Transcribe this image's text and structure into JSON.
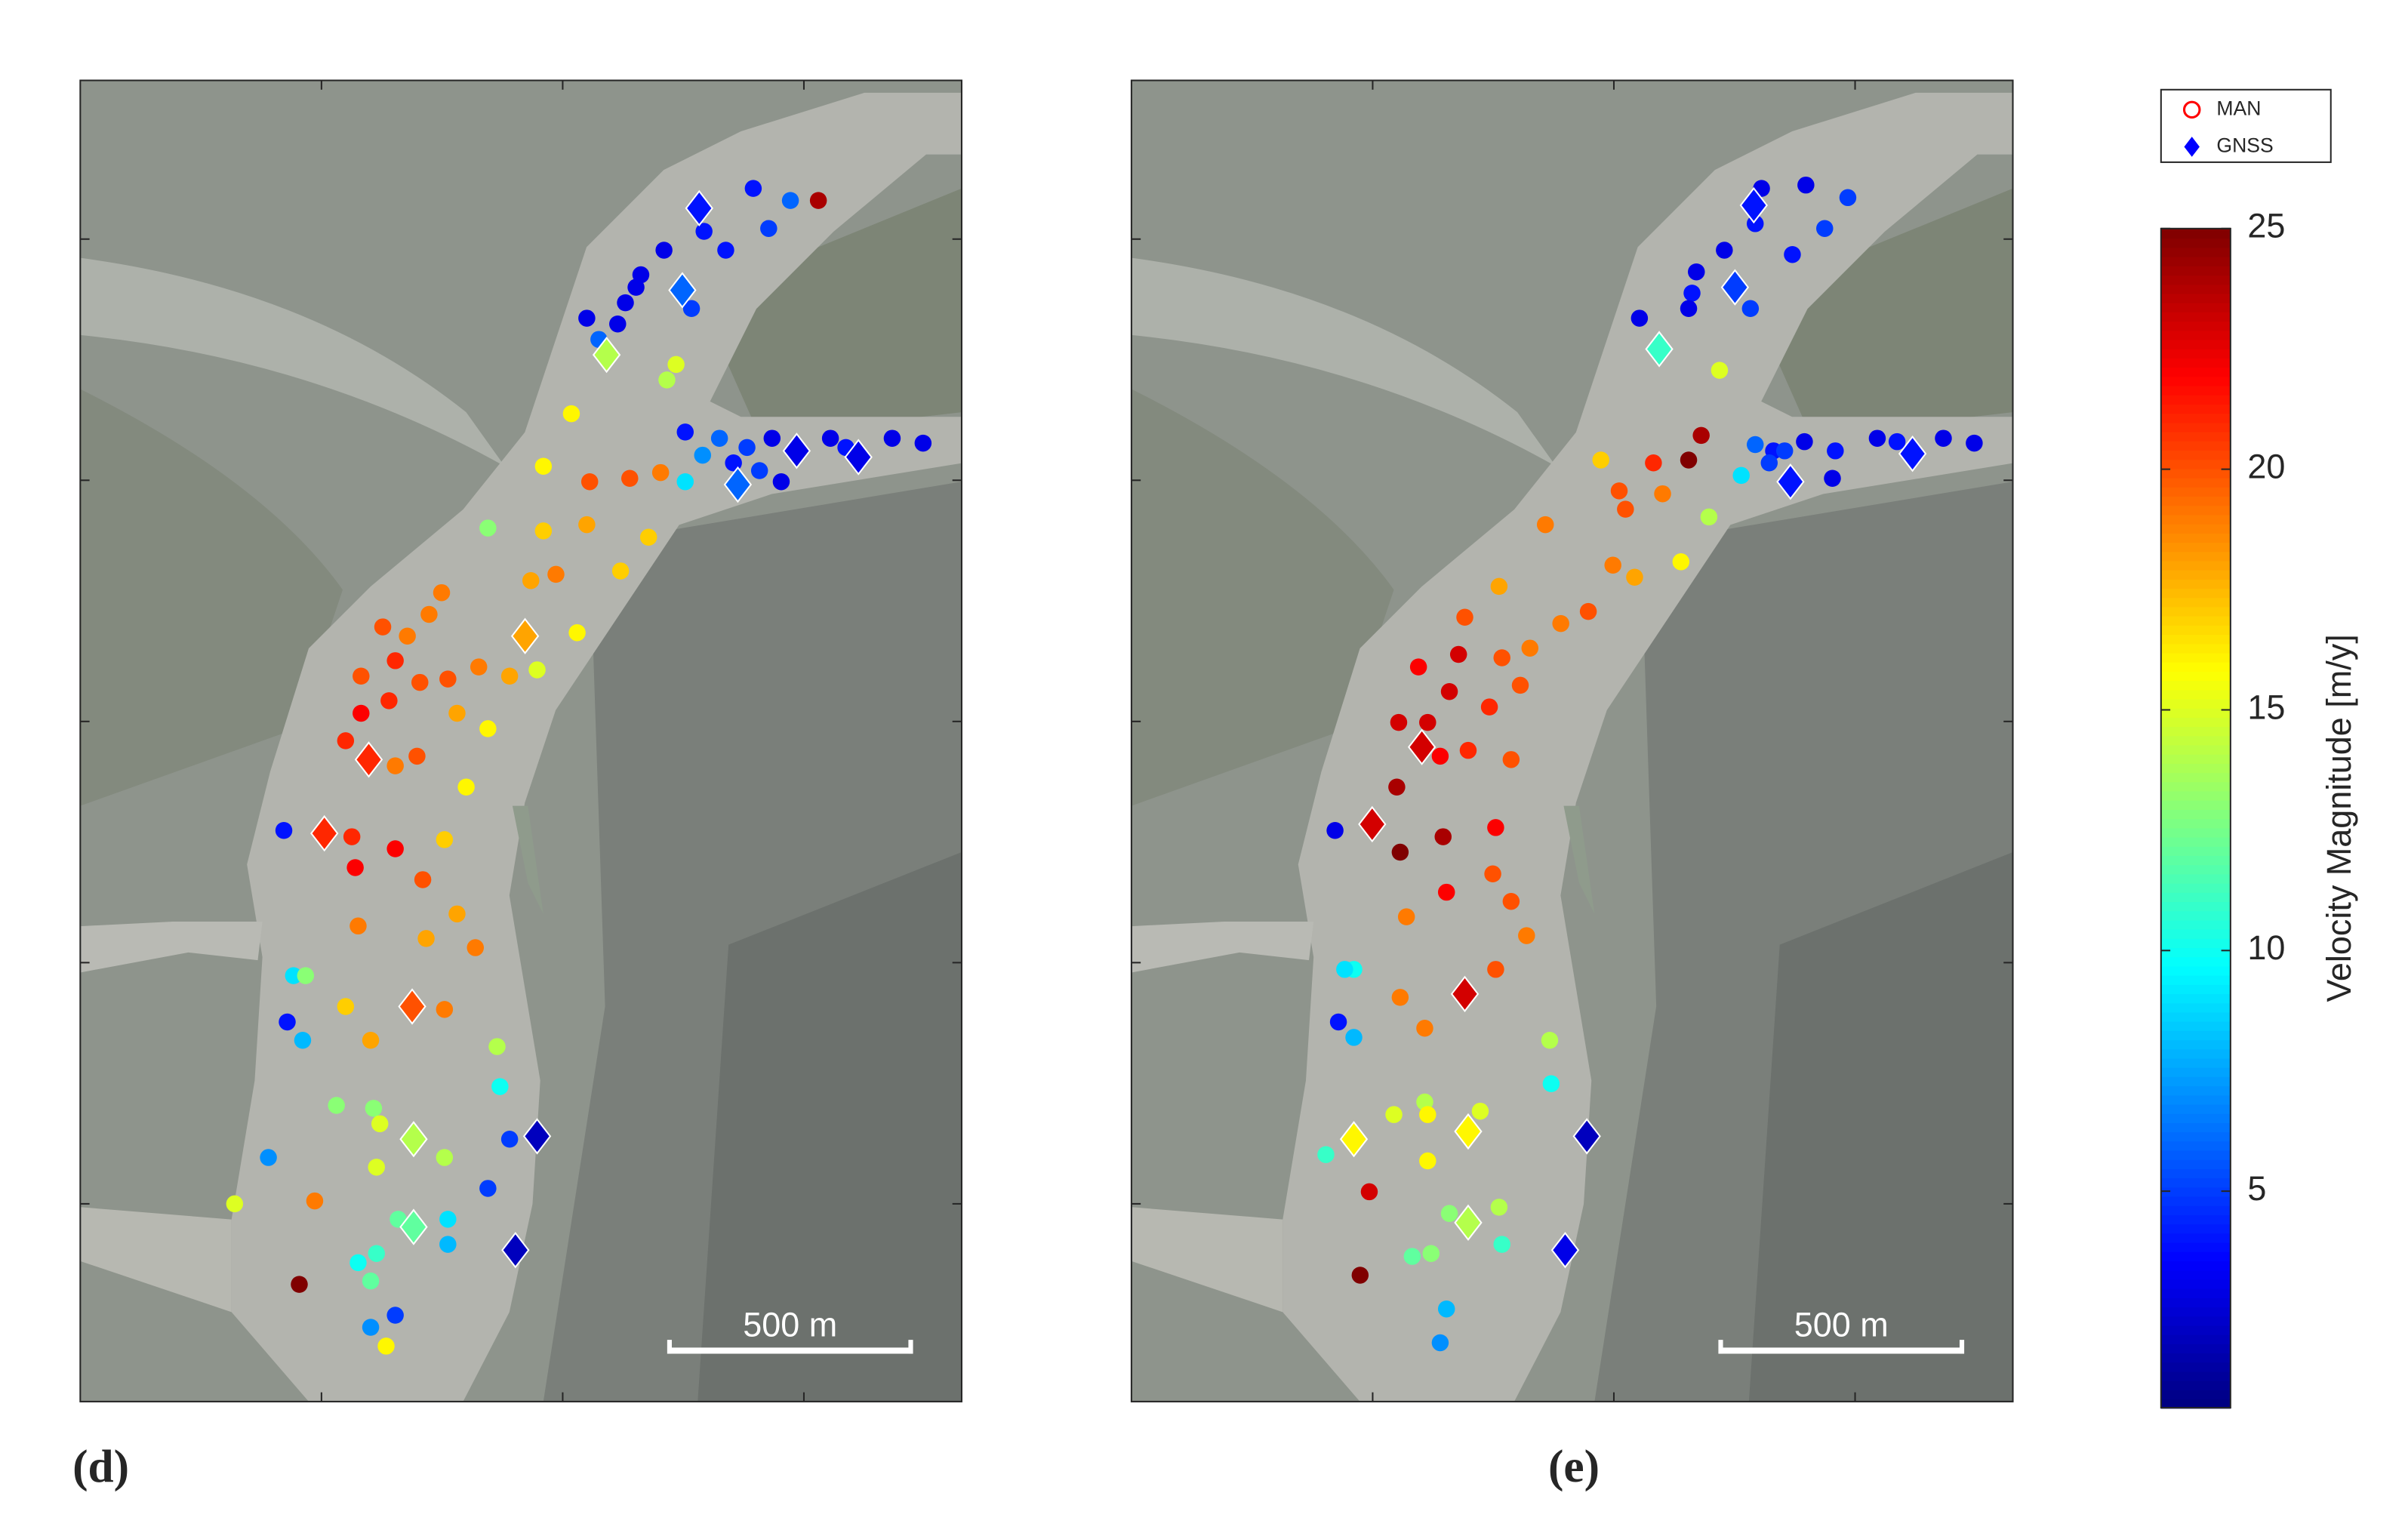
{
  "chart_data": [
    {
      "type": "scatter",
      "label": "(d)",
      "xlim": [
        0,
        1827
      ],
      "ylim": [
        0,
        2739
      ],
      "xticks": [
        500,
        1000,
        1500
      ],
      "yticks": [
        410,
        910,
        1410,
        1910,
        2410
      ],
      "scalebar": {
        "length": 500,
        "label": "500 m"
      },
      "series": [
        {
          "marker": "circle",
          "x": [
            1530,
            1472,
            1395,
            1427,
            1293,
            1338,
            1210,
            1162,
            1152,
            1267,
            1050,
            1114,
            1130,
            1075,
            1216,
            1235,
            1018,
            1254,
            1325,
            1382,
            1434,
            1555,
            1587,
            1683,
            1747,
            1290,
            1354,
            1408,
            1453,
            1254,
            960,
            1056,
            1139,
            1203,
            845,
            960,
            1050,
            1178,
            1120,
            934,
            986,
            749,
            723,
            627,
            678,
            1030,
            947,
            890,
            826,
            762,
            582,
            653,
            704,
            845,
            781,
            640,
            582,
            550,
            698,
            653,
            800,
            422,
            563,
            653,
            755,
            710,
            570,
            819,
            781,
            717,
            576,
            442,
            467,
            429,
            461,
            550,
            602,
            755,
            864,
            870,
            608,
            621,
            531,
            755,
            614,
            890,
            390,
            486,
            320,
            845,
            762,
            659,
            762,
            614,
            576,
            454,
            602,
            653,
            602,
            634
          ],
          "y": [
            2490,
            2490,
            2515,
            2432,
            2426,
            2387,
            2387,
            2336,
            2310,
            2266,
            2246,
            2234,
            2278,
            2202,
            2118,
            2150,
            2048,
            2010,
            1997,
            1978,
            1997,
            1997,
            1978,
            1997,
            1987,
            1962,
            1946,
            1930,
            1907,
            1907,
            1939,
            1907,
            1914,
            1926,
            1811,
            1805,
            1818,
            1792,
            1722,
            1702,
            1715,
            1677,
            1632,
            1606,
            1587,
            1594,
            1517,
            1504,
            1523,
            1498,
            1504,
            1536,
            1491,
            1395,
            1427,
            1453,
            1427,
            1370,
            1338,
            1318,
            1274,
            1184,
            1171,
            1146,
            1165,
            1082,
            1107,
            941,
            1011,
            960,
            986,
            883,
            883,
            787,
            749,
            819,
            749,
            813,
            736,
            653,
            608,
            576,
            614,
            506,
            486,
            544,
            506,
            416,
            410,
            442,
            378,
            378,
            326,
            307,
            288,
            243,
            250,
            179,
            154,
            115
          ],
          "values": [
            24,
            6,
            4,
            5,
            4,
            4,
            3,
            3,
            3,
            5,
            3,
            3,
            3,
            6,
            14,
            15,
            16,
            4,
            6,
            5,
            3,
            3,
            4,
            3,
            3,
            7,
            4,
            5,
            3,
            9,
            16,
            20,
            20,
            19,
            13,
            17,
            18,
            17,
            17,
            18,
            19,
            19,
            19,
            20,
            19,
            16,
            15,
            18,
            19,
            20,
            20,
            21,
            20,
            16,
            18,
            21,
            22,
            21,
            20,
            19,
            16,
            4,
            21,
            22,
            17,
            20,
            22,
            19,
            18,
            18,
            19,
            9,
            13,
            4,
            8,
            17,
            18,
            19,
            14,
            10,
            13,
            15,
            13,
            14,
            15,
            5,
            7,
            19,
            15,
            5,
            9,
            12,
            8,
            11,
            10,
            25,
            12,
            5,
            7,
            16
          ]
        },
        {
          "marker": "diamond",
          "x": [
            1283,
            1248,
            1091,
            1485,
            1613,
            1363,
            922,
            598,
            506,
            688,
            691,
            947,
            691,
            902
          ],
          "y": [
            2474,
            2304,
            2170,
            1971,
            1958,
            1901,
            1587,
            1331,
            1178,
            819,
            544,
            550,
            362,
            314
          ],
          "values": [
            4,
            6,
            14,
            3,
            3,
            6,
            18,
            21,
            21,
            20,
            14,
            2,
            12,
            2
          ]
        }
      ]
    },
    {
      "type": "scatter",
      "label": "(e)",
      "xlim": [
        0,
        1827
      ],
      "ylim": [
        0,
        2739
      ],
      "xticks": [
        500,
        1000,
        1500
      ],
      "yticks": [
        410,
        910,
        1410,
        1910,
        2410
      ],
      "scalebar": {
        "length": 500,
        "label": "500 m"
      },
      "series": [
        {
          "marker": "circle",
          "x": [
            1485,
            1398,
            1306,
            1293,
            1437,
            1370,
            1229,
            1171,
            1162,
            1283,
            1053,
            1155,
            1219,
            1181,
            1155,
            1082,
            973,
            1293,
            1331,
            1395,
            1459,
            1546,
            1587,
            1683,
            1747,
            1322,
            1354,
            1453,
            1264,
            1011,
            1101,
            1197,
            1139,
            1024,
            858,
            998,
            1043,
            762,
            691,
            947,
            890,
            826,
            768,
            678,
            595,
            806,
            742,
            659,
            614,
            554,
            698,
            640,
            787,
            550,
            422,
            557,
            646,
            755,
            653,
            749,
            819,
            787,
            570,
            461,
            442,
            429,
            461,
            557,
            608,
            755,
            867,
            870,
            608,
            614,
            544,
            723,
            614,
            403,
            493,
            762,
            659,
            768,
            621,
            582,
            474,
            653,
            640
          ],
          "y": [
            2496,
            2522,
            2515,
            2442,
            2432,
            2378,
            2387,
            2342,
            2298,
            2266,
            2246,
            2266,
            2138,
            2003,
            1952,
            1946,
            1952,
            1984,
            1971,
            1990,
            1971,
            1997,
            1990,
            1997,
            1987,
            1946,
            1971,
            1914,
            1920,
            1888,
            1882,
            1834,
            1741,
            1850,
            1818,
            1734,
            1709,
            1690,
            1626,
            1638,
            1613,
            1562,
            1542,
            1549,
            1523,
            1485,
            1440,
            1472,
            1408,
            1408,
            1350,
            1338,
            1331,
            1274,
            1184,
            1139,
            1171,
            1190,
            1056,
            1094,
            966,
            1037,
            1005,
            896,
            896,
            787,
            755,
            838,
            774,
            896,
            749,
            659,
            621,
            595,
            595,
            602,
            499,
            512,
            435,
            403,
            390,
            326,
            307,
            301,
            262,
            192,
            122
          ],
          "values": [
            5,
            3,
            3,
            4,
            5,
            4,
            3,
            3,
            4,
            5,
            3,
            3,
            15,
            24,
            25,
            21,
            17,
            6,
            4,
            3,
            4,
            3,
            4,
            3,
            3,
            5,
            5,
            3,
            9,
            20,
            19,
            14,
            16,
            20,
            19,
            19,
            18,
            18,
            20,
            20,
            19,
            19,
            20,
            23,
            22,
            20,
            21,
            23,
            23,
            23,
            21,
            22,
            20,
            24,
            3,
            25,
            24,
            22,
            22,
            20,
            19,
            20,
            19,
            10,
            9,
            4,
            8,
            19,
            19,
            20,
            14,
            10,
            14,
            16,
            15,
            15,
            16,
            11,
            23,
            14,
            13,
            11,
            13,
            12,
            25,
            8,
            7
          ]
        },
        {
          "marker": "diamond",
          "x": [
            1290,
            1251,
            1094,
            1619,
            1366,
            499,
            602,
            691,
            461,
            698,
            944,
            698,
            899
          ],
          "y": [
            2480,
            2310,
            2182,
            1965,
            1907,
            1197,
            1357,
            845,
            544,
            560,
            550,
            371,
            314
          ],
          "values": [
            4,
            5,
            11,
            4,
            4,
            23,
            23,
            23,
            16,
            16,
            2,
            14,
            3
          ]
        }
      ]
    }
  ],
  "legend": [
    {
      "name": "MAN",
      "marker": "circle",
      "color": "#ff0000"
    },
    {
      "name": "GNSS",
      "marker": "diamond",
      "color": "#0000ff"
    }
  ],
  "colorbar": {
    "label": "Velocity Magnitude [m/y]",
    "colormap": "jet",
    "clim": [
      0.5,
      25
    ],
    "ticks": [
      5,
      10,
      15,
      20,
      25
    ]
  }
}
